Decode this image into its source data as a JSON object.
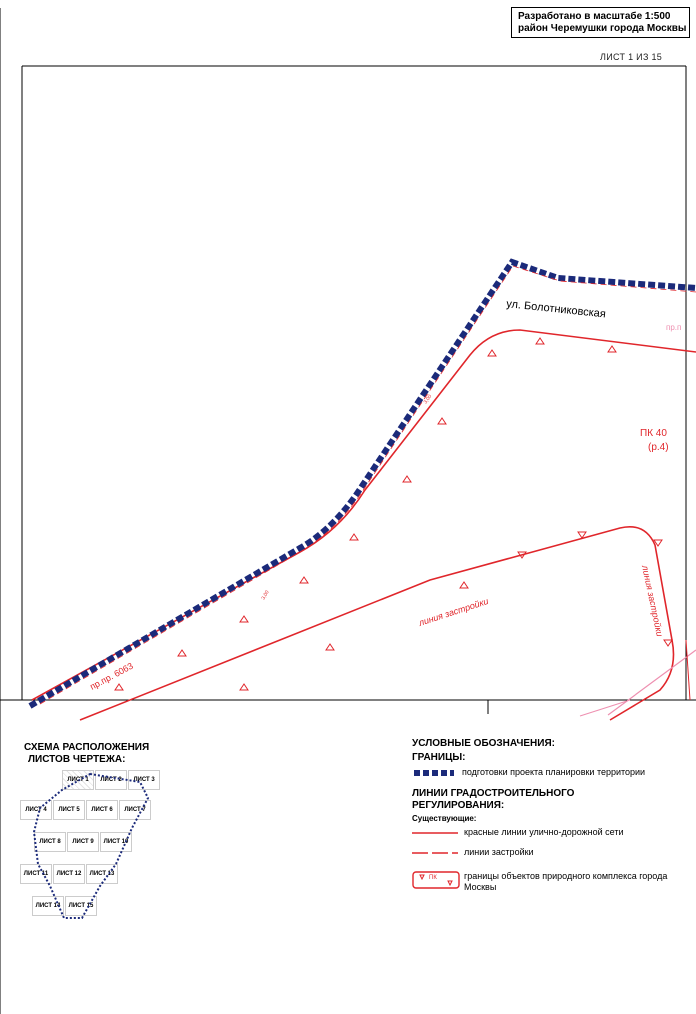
{
  "title_block": {
    "line1": "Разработано в масштабе 1:500",
    "line2": "район Черемушки города Москвы"
  },
  "sheet_label": "ЛИСТ 1 ИЗ 15",
  "map": {
    "street_name": "ул. Болотниковская",
    "pk_label": "ПК 40",
    "pk_sub": "(р.4)",
    "pr_label_right": "пр.п",
    "pr_label_left": "пр.пр. 6063",
    "zastroyki_1": "линия застройки",
    "zastroyki_2": "линия застройки",
    "dim_1": "3,00",
    "dim_2": "3,00"
  },
  "scheme": {
    "title_line1": "СХЕМА РАСПОЛОЖЕНИЯ",
    "title_line2": "ЛИСТОВ ЧЕРТЕЖА:",
    "sheets": [
      "ЛИСТ 1",
      "ЛИСТ 2",
      "ЛИСТ 3",
      "ЛИСТ 4",
      "ЛИСТ 5",
      "ЛИСТ 6",
      "ЛИСТ 7",
      "ЛИСТ 8",
      "ЛИСТ 9",
      "ЛИСТ 10",
      "ЛИСТ 11",
      "ЛИСТ 12",
      "ЛИСТ 13",
      "ЛИСТ 14",
      "ЛИСТ 15"
    ]
  },
  "legend": {
    "title": "УСЛОВНЫЕ ОБОЗНАЧЕНИЯ:",
    "borders_heading": "ГРАНИЦЫ:",
    "item_project": "подготовки проекта планировки территории",
    "lines_heading_1": "ЛИНИИ ГРАДОСТРОИТЕЛЬНОГО",
    "lines_heading_2": "РЕГУЛИРОВАНИЯ:",
    "existing": "Существующие:",
    "item_red": "красные линии улично-дорожной сети",
    "item_building": "линии застройки",
    "item_nature": "границы объектов природного комплекса города Москвы",
    "nature_box_label": "ПК"
  },
  "colors": {
    "navy": "#1b2a7a",
    "red": "#e0262b",
    "pink": "#ee8fb0"
  }
}
